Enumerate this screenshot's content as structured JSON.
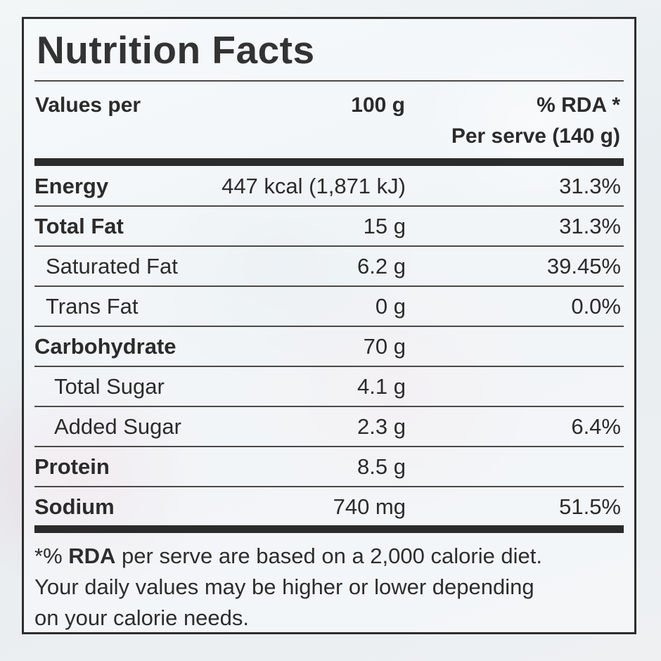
{
  "label": {
    "title": "Nutrition Facts",
    "header": {
      "values_per": "Values per",
      "per_100": "100 g",
      "rda_line1": "% RDA *",
      "rda_line2": "Per serve (140 g)"
    },
    "rows": [
      {
        "name": "Energy",
        "value": "447 kcal (1,871 kJ)",
        "rda": "31.3%"
      },
      {
        "name": "Total Fat",
        "value": "15 g",
        "rda": "31.3%"
      },
      {
        "name": "Saturated Fat",
        "value": "6.2 g",
        "rda": "39.45%"
      },
      {
        "name": "Trans Fat",
        "value": "0 g",
        "rda": "0.0%"
      },
      {
        "name": "Carbohydrate",
        "value": "70 g",
        "rda": ""
      },
      {
        "name": "Total Sugar",
        "value": "4.1 g",
        "rda": ""
      },
      {
        "name": "Added Sugar",
        "value": "2.3 g",
        "rda": "6.4%"
      },
      {
        "name": "Protein",
        "value": "8.5 g",
        "rda": ""
      },
      {
        "name": "Sodium",
        "value": "740 mg",
        "rda": "51.5%"
      }
    ],
    "footnote": {
      "prefix": "*% ",
      "bold": "RDA",
      "line1_rest": " per serve are based on a 2,000 calorie diet.",
      "line2": "Your daily values may be higher or lower depending",
      "line3": "on your calorie needs."
    }
  }
}
